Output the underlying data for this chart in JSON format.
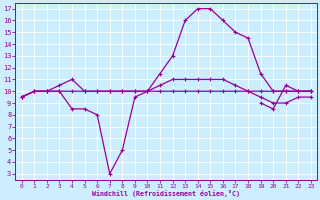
{
  "xlabel": "Windchill (Refroidissement éolien,°C)",
  "bg_color": "#cceeff",
  "line_color": "#990099",
  "grid_color": "#ffffff",
  "xlim": [
    -0.5,
    23.5
  ],
  "ylim": [
    2.5,
    17.5
  ],
  "xticks": [
    0,
    1,
    2,
    3,
    4,
    5,
    6,
    7,
    8,
    9,
    10,
    11,
    12,
    13,
    14,
    15,
    16,
    17,
    18,
    19,
    20,
    21,
    22,
    23
  ],
  "yticks": [
    3,
    4,
    5,
    6,
    7,
    8,
    9,
    10,
    11,
    12,
    13,
    14,
    15,
    16,
    17
  ],
  "curve1_x": [
    0,
    1,
    2,
    3,
    4,
    5,
    6,
    7,
    8,
    9,
    10,
    11,
    12,
    13,
    14,
    15,
    16,
    17,
    18,
    19,
    20,
    21,
    22,
    23
  ],
  "curve1_y": [
    9.5,
    10,
    10,
    10,
    10,
    10,
    10,
    10,
    10,
    10,
    10,
    10,
    10,
    10,
    10,
    10,
    10,
    10,
    10,
    10,
    10,
    10,
    10,
    10
  ],
  "curve2_x": [
    0,
    1,
    2,
    3,
    4,
    5,
    6,
    7,
    8,
    9,
    10,
    11,
    12,
    13,
    14,
    15,
    16,
    17,
    18,
    19,
    20,
    21,
    22,
    23
  ],
  "curve2_y": [
    9.5,
    10,
    10,
    10.5,
    11,
    10,
    10,
    10,
    10,
    10,
    10,
    10.5,
    11,
    11,
    11,
    11,
    11,
    10.5,
    10,
    9.5,
    9,
    9,
    9.5,
    9.5
  ],
  "curve3_x": [
    0,
    1,
    2,
    3,
    4,
    5,
    6,
    7,
    8,
    9,
    10,
    11,
    12,
    13,
    14,
    15,
    16,
    17,
    18,
    19,
    20,
    21,
    22,
    23
  ],
  "curve3_y": [
    9.5,
    10,
    10,
    10,
    8.5,
    8.5,
    8,
    3,
    5,
    9.5,
    10,
    11.5,
    13,
    16,
    17,
    17,
    16,
    15,
    14.5,
    11.5,
    10,
    10,
    10,
    10
  ],
  "curve4_x": [
    19,
    20,
    21,
    22,
    23
  ],
  "curve4_y": [
    9,
    8.5,
    10.5,
    10,
    10
  ]
}
